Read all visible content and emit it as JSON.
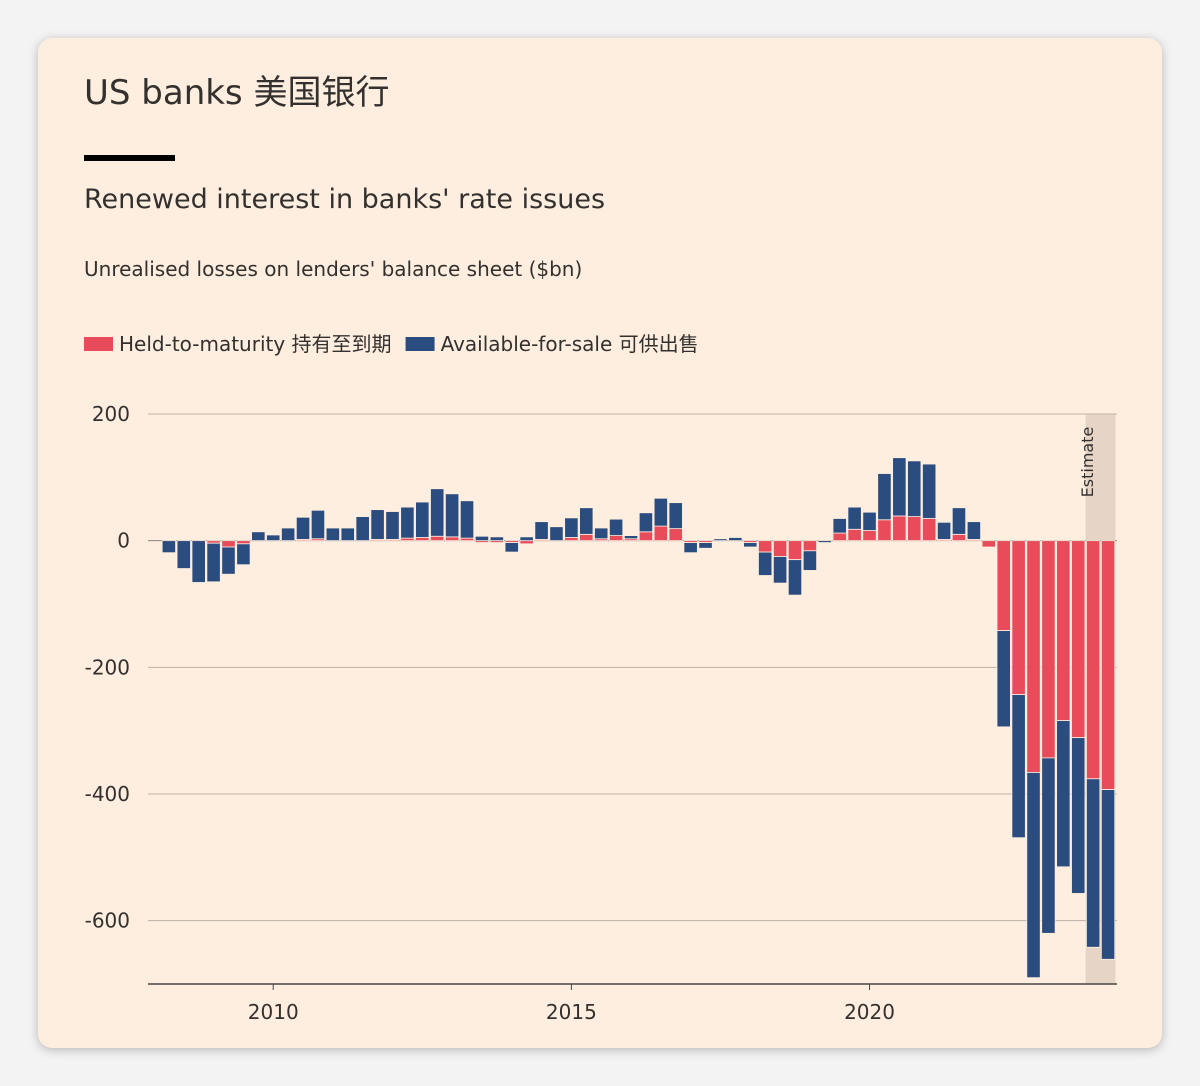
{
  "chart_data": {
    "type": "stacked_bar",
    "title": "US banks 美国银行",
    "subtitle": "Renewed interest in banks' rate issues",
    "ylabel": "Unrealised losses on lenders' balance sheet ($bn)",
    "annotation": "Estimate",
    "shade_xlim": [
      2023.625,
      2024.125
    ],
    "x": [
      2008.25,
      2008.5,
      2008.75,
      2009,
      2009.25,
      2009.5,
      2009.75,
      2010,
      2010.25,
      2010.5,
      2010.75,
      2011,
      2011.25,
      2011.5,
      2011.75,
      2012,
      2012.25,
      2012.5,
      2012.75,
      2013,
      2013.25,
      2013.5,
      2013.75,
      2014,
      2014.25,
      2014.5,
      2014.75,
      2015,
      2015.25,
      2015.5,
      2015.75,
      2016,
      2016.25,
      2016.5,
      2016.75,
      2017,
      2017.25,
      2017.5,
      2017.75,
      2018,
      2018.25,
      2018.5,
      2018.75,
      2019,
      2019.25,
      2019.5,
      2019.75,
      2020,
      2020.25,
      2020.5,
      2020.75,
      2021,
      2021.25,
      2021.5,
      2021.75,
      2022,
      2022.25,
      2022.5,
      2022.75,
      2023,
      2023.25,
      2023.5,
      2023.75,
      2024
    ],
    "series": [
      {
        "name": "Held-to-maturity 持有至到期",
        "color": "#e84b5a",
        "values": [
          0,
          0,
          0,
          -4,
          -10,
          -5,
          0,
          0,
          0,
          2,
          3,
          0,
          0,
          0,
          2,
          2,
          4,
          5,
          7,
          6,
          4,
          -3,
          -3,
          -3,
          -5,
          2,
          0,
          5,
          10,
          3,
          8,
          3,
          14,
          23,
          19,
          -3,
          -3,
          0,
          0,
          -3,
          -18,
          -25,
          -30,
          -16,
          0,
          12,
          18,
          16,
          33,
          39,
          38,
          35,
          2,
          10,
          2,
          -10,
          -142,
          -243,
          -366,
          -343,
          -284,
          -311,
          -376,
          -393
        ]
      },
      {
        "name": "Available-for-sale 可供出售",
        "color": "#2b4c7e",
        "values": [
          -19,
          -44,
          -66,
          -61,
          -43,
          -33,
          14,
          9,
          20,
          35,
          45,
          20,
          20,
          38,
          47,
          44,
          49,
          56,
          75,
          68,
          59,
          7,
          6,
          -15,
          6,
          28,
          22,
          31,
          42,
          17,
          26,
          5,
          30,
          44,
          41,
          -16,
          -9,
          3,
          5,
          -7,
          -37,
          -42,
          -56,
          -31,
          -3,
          23,
          35,
          29,
          73,
          92,
          88,
          86,
          27,
          42,
          28,
          0,
          -152,
          -226,
          -324,
          -277,
          -231,
          -246,
          -266,
          -268
        ]
      }
    ],
    "xlim": [
      2007.9,
      2024.15
    ],
    "xticks": [
      2010,
      2015,
      2020
    ],
    "ylim": [
      -700,
      200
    ],
    "yticks": [
      -600,
      -400,
      -200,
      0,
      200
    ],
    "grid": true
  }
}
